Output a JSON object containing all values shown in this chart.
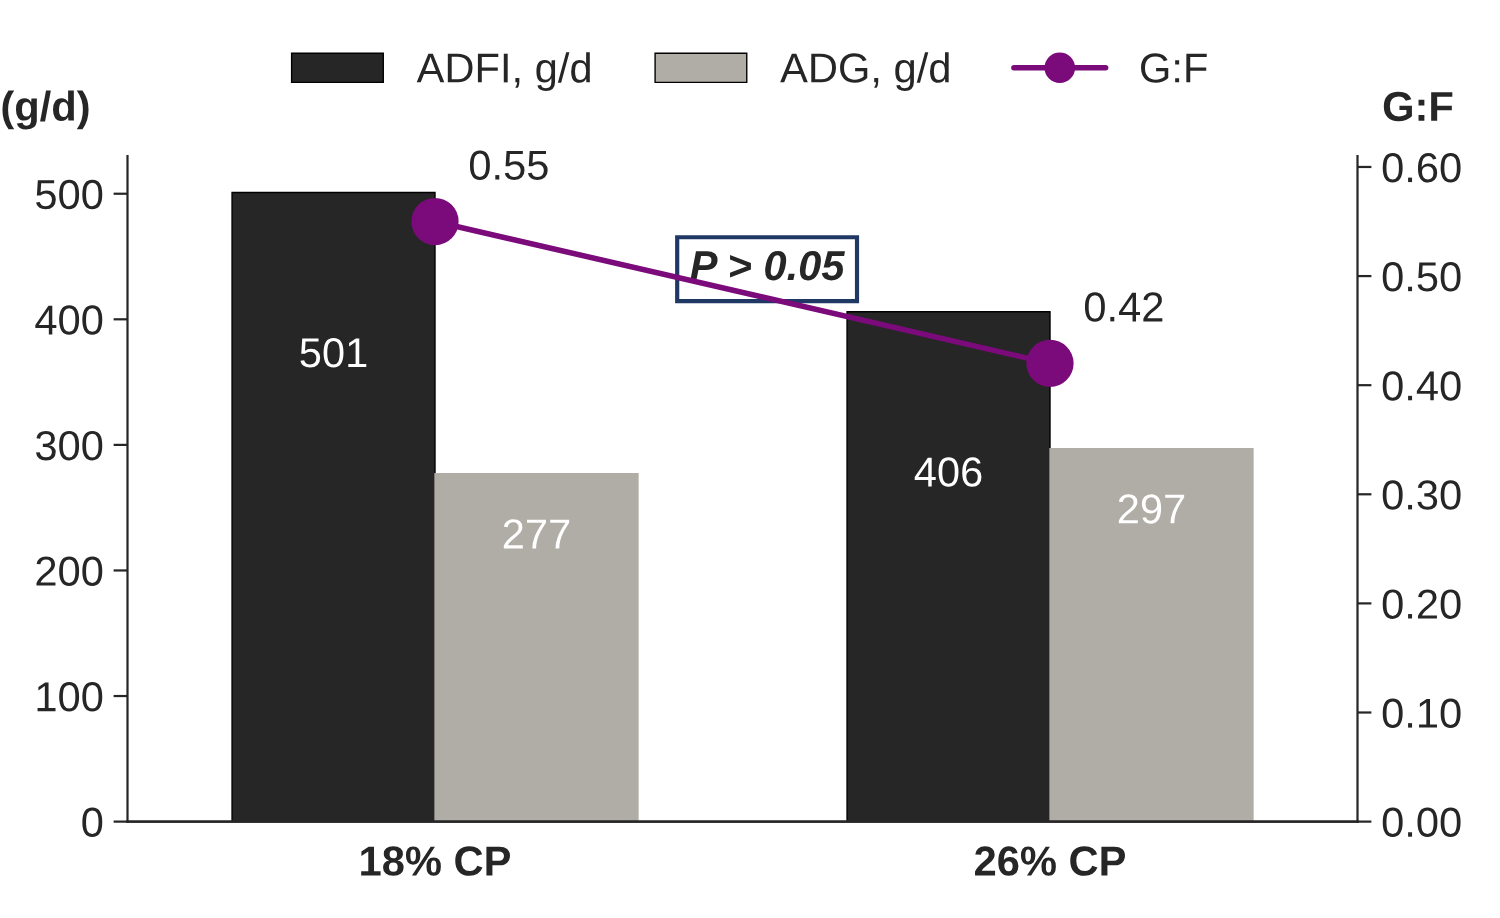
{
  "chart_data": {
    "type": "bar",
    "categories": [
      "18% CP",
      "26% CP"
    ],
    "series": [
      {
        "name": "ADFI, g/d",
        "color": "#262626",
        "values": [
          501,
          406
        ]
      },
      {
        "name": "ADG, g/d",
        "color": "#b0ada6",
        "values": [
          277,
          297
        ]
      },
      {
        "name": "G:F",
        "type": "line",
        "axis": "y2",
        "color": "#7b0a7b",
        "values": [
          0.55,
          0.42
        ],
        "marker": "circle",
        "line_style": "solid"
      }
    ],
    "ylabel": "(g/d)",
    "y2label": "G:F",
    "ylim": [
      0,
      530
    ],
    "yticks": [
      0,
      100,
      200,
      300,
      400,
      500
    ],
    "y2lim": [
      0,
      0.61
    ],
    "y2ticks": [
      {
        "value": 0,
        "label": "0.00"
      },
      {
        "value": 0.1,
        "label": "0.10"
      },
      {
        "value": 0.2,
        "label": "0.20"
      },
      {
        "value": 0.3,
        "label": "0.30"
      },
      {
        "value": 0.4,
        "label": "0.40"
      },
      {
        "value": 0.5,
        "label": "0.50"
      },
      {
        "value": 0.6,
        "label": "0.60"
      }
    ],
    "annotations": [
      "P > 0.05"
    ],
    "data_labels": true,
    "legend": "top",
    "grid": false
  }
}
